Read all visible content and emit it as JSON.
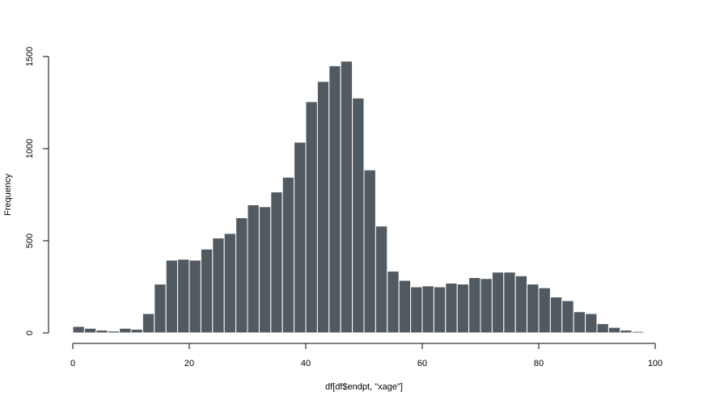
{
  "chart_data": {
    "type": "bar",
    "title": "",
    "xlabel": "df[df$endpt, \"xage\"]",
    "ylabel": "Frequency",
    "bin_width": 2,
    "x_start": 0,
    "xlim": [
      0,
      100
    ],
    "ylim": [
      0,
      1500
    ],
    "xticks": [
      0,
      20,
      40,
      60,
      80,
      100
    ],
    "yticks": [
      0,
      500,
      1000,
      1500
    ],
    "bar_color": "#525a61",
    "bar_edge_color": "#ffffff",
    "values": [
      35,
      25,
      15,
      10,
      25,
      20,
      105,
      265,
      395,
      400,
      395,
      455,
      515,
      540,
      625,
      695,
      685,
      765,
      845,
      1035,
      1255,
      1365,
      1450,
      1475,
      1275,
      885,
      580,
      335,
      285,
      250,
      255,
      250,
      270,
      265,
      300,
      295,
      330,
      330,
      310,
      265,
      245,
      195,
      175,
      115,
      105,
      50,
      30,
      15,
      8
    ],
    "grid": false,
    "legend": "none"
  }
}
